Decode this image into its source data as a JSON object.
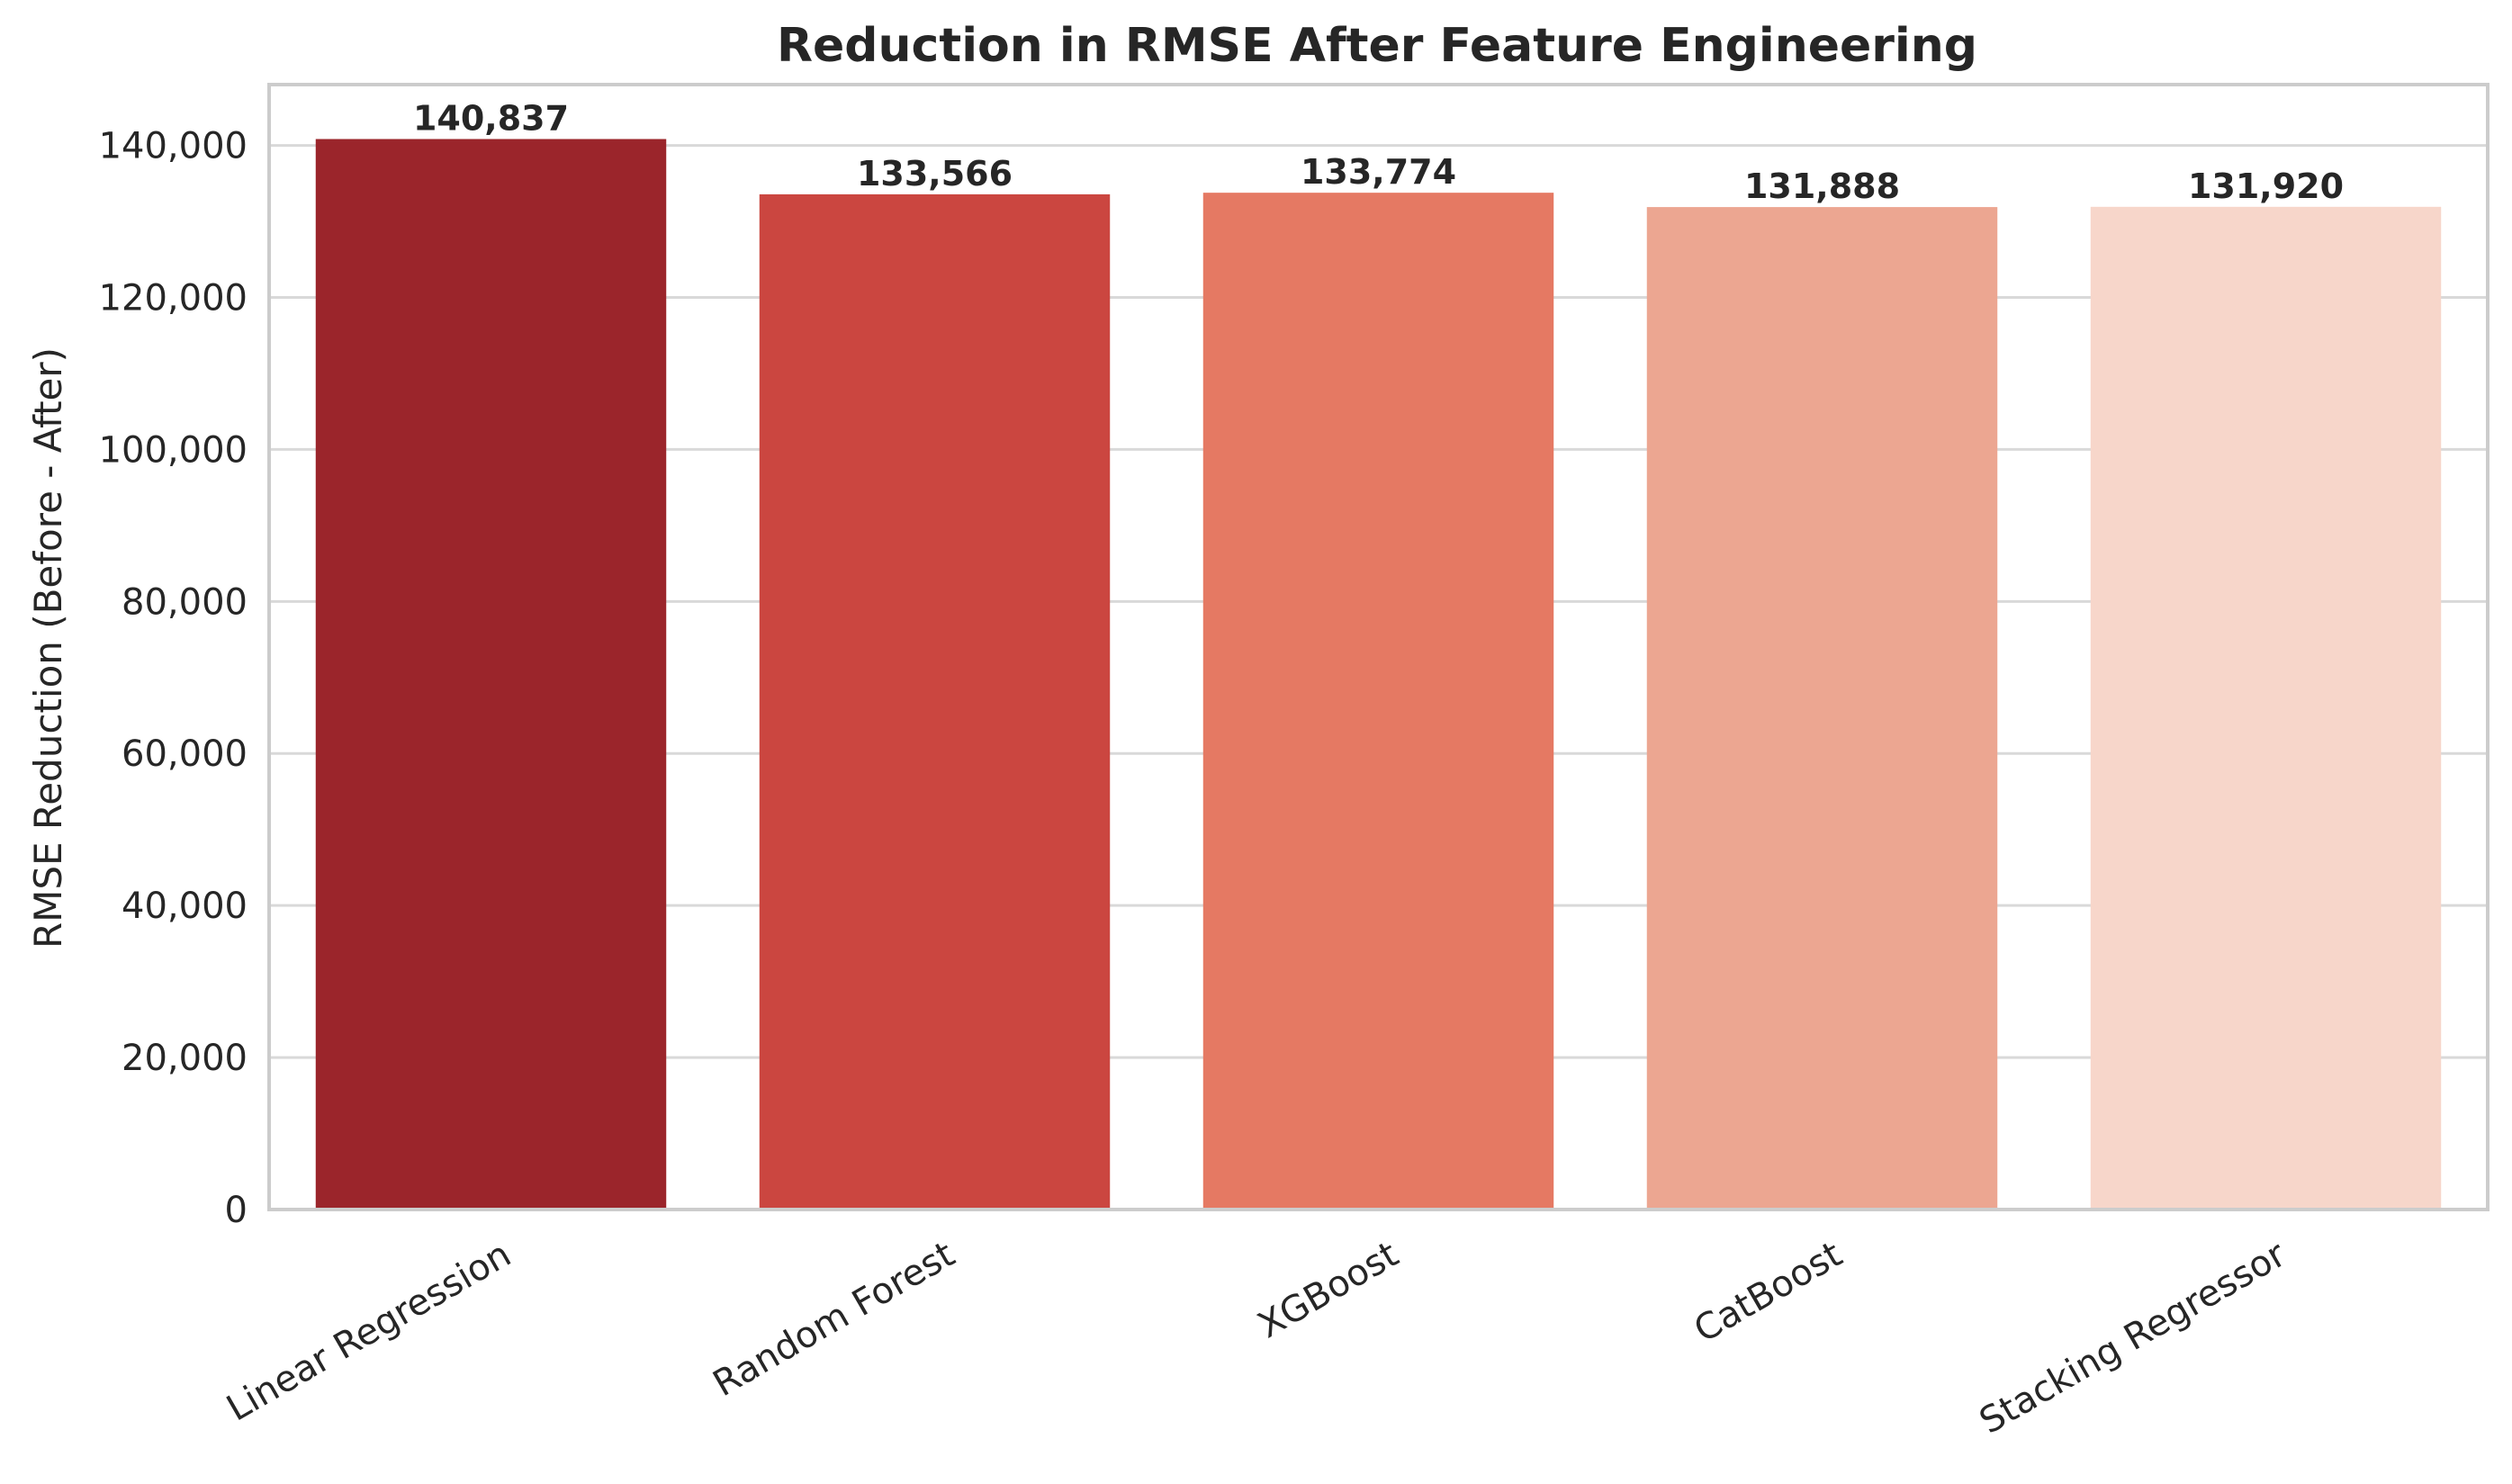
{
  "chart_data": {
    "type": "bar",
    "title": "Reduction in RMSE After Feature Engineering",
    "xlabel": "",
    "ylabel": "RMSE Reduction (Before - After)",
    "categories": [
      "Linear Regression",
      "Random Forest",
      "XGBoost",
      "CatBoost",
      "Stacking Regressor"
    ],
    "values": [
      140837,
      133566,
      133774,
      131888,
      131920
    ],
    "value_labels": [
      "140,837",
      "133,566",
      "133,774",
      "131,888",
      "131,920"
    ],
    "colors": [
      "#9b252b",
      "#cb4640",
      "#e57963",
      "#eca691",
      "#f7d6ca"
    ],
    "ylim": [
      0,
      148000
    ],
    "yticks": [
      0,
      20000,
      40000,
      60000,
      80000,
      100000,
      120000,
      140000
    ],
    "ytick_labels": [
      "0",
      "20,000",
      "40,000",
      "60,000",
      "80,000",
      "100,000",
      "120,000",
      "140,000"
    ],
    "grid": "horizontal",
    "legend": "none"
  }
}
